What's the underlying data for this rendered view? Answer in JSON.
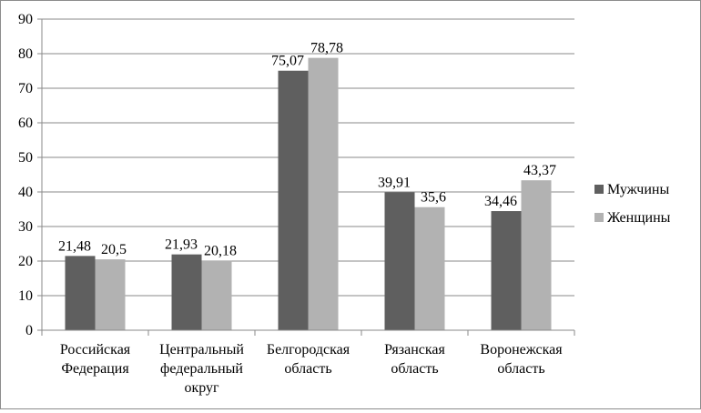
{
  "chart_data": {
    "type": "bar",
    "categories": [
      [
        "Российская",
        "Федерация"
      ],
      [
        "Центральный",
        "федеральный",
        "округ"
      ],
      [
        "Белгородская",
        "область"
      ],
      [
        "Рязанская",
        "область"
      ],
      [
        "Воронежская",
        "область"
      ]
    ],
    "series": [
      {
        "name": "Мужчины",
        "color": "#5f5f5f",
        "values": [
          21.48,
          21.93,
          75.07,
          39.91,
          34.46
        ],
        "labels": [
          "21,48",
          "21,93",
          "75,07",
          "39,91",
          "34,46"
        ]
      },
      {
        "name": "Женщины",
        "color": "#b2b2b2",
        "values": [
          20.5,
          20.18,
          78.78,
          35.6,
          43.37
        ],
        "labels": [
          "20,5",
          "20,18",
          "78,78",
          "35,6",
          "43,37"
        ]
      }
    ],
    "ylim": [
      0,
      90
    ],
    "yticks": [
      0,
      10,
      20,
      30,
      40,
      50,
      60,
      70,
      80,
      90
    ],
    "grid": true,
    "legend_position": "right",
    "title": "",
    "xlabel": "",
    "ylabel": ""
  }
}
